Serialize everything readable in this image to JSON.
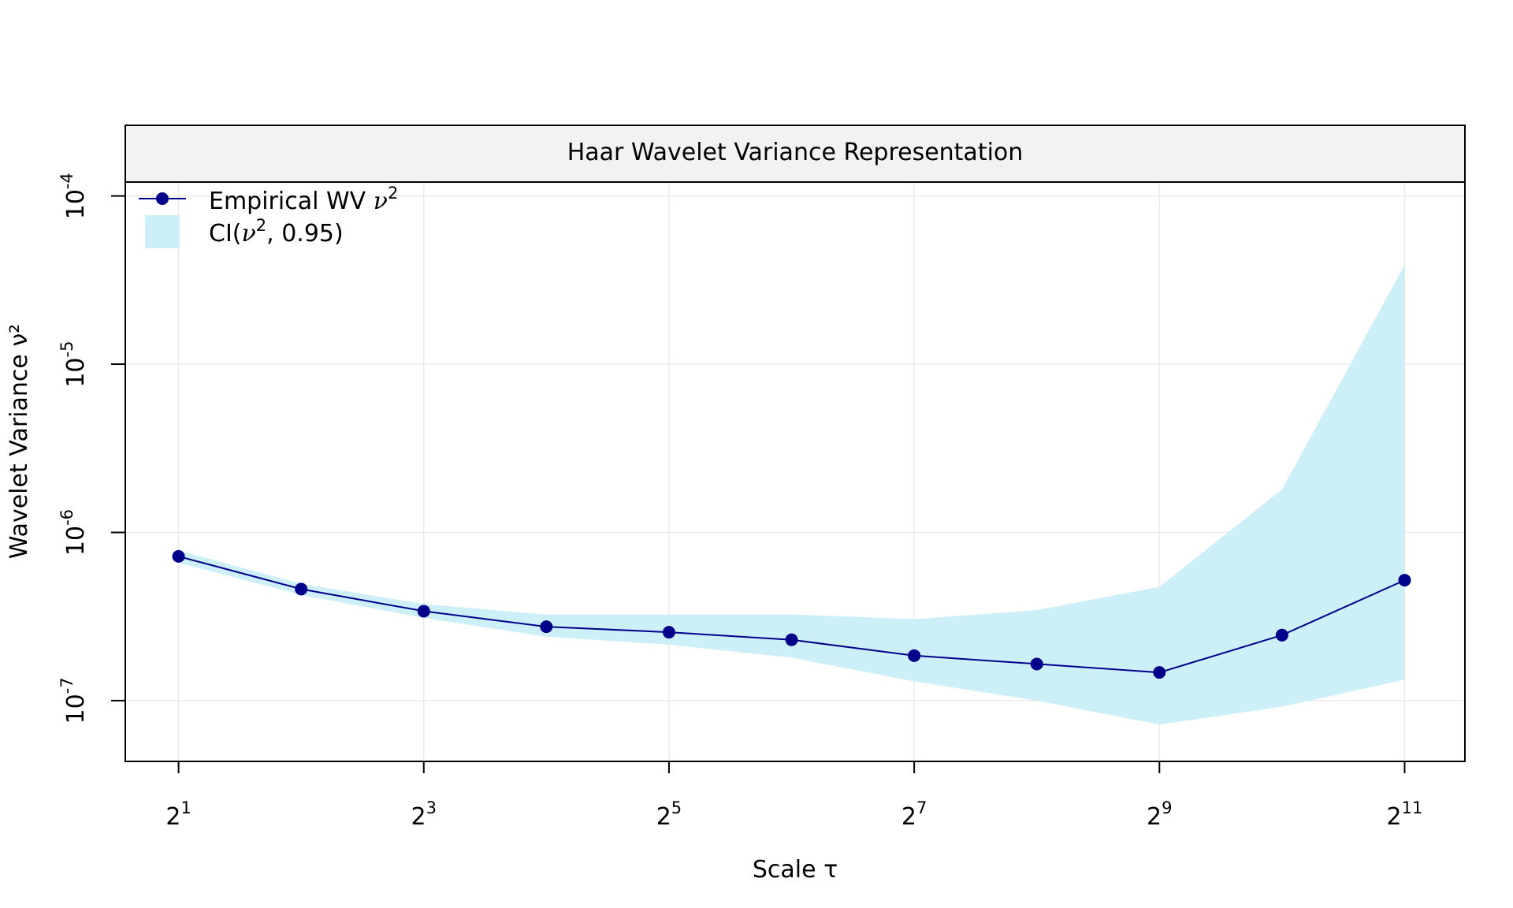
{
  "chart_data": {
    "type": "line",
    "title": "Haar Wavelet Variance Representation",
    "xlabel": "Scale τ",
    "ylabel": "Wavelet Variance ν²",
    "x_scale": "log2",
    "y_scale": "log10",
    "xlim": [
      1.48,
      2880
    ],
    "ylim": [
      4.35e-08,
      0.000121
    ],
    "x": [
      2,
      4,
      8,
      16,
      32,
      64,
      128,
      256,
      512,
      1024,
      2048
    ],
    "x_ticks": [
      {
        "value": 2,
        "base": "2",
        "exp": "1"
      },
      {
        "value": 8,
        "base": "2",
        "exp": "3"
      },
      {
        "value": 32,
        "base": "2",
        "exp": "5"
      },
      {
        "value": 128,
        "base": "2",
        "exp": "7"
      },
      {
        "value": 512,
        "base": "2",
        "exp": "9"
      },
      {
        "value": 2048,
        "base": "2",
        "exp": "11"
      }
    ],
    "y_ticks": [
      {
        "value": 1e-07,
        "base": "10",
        "exp": "-7"
      },
      {
        "value": 1e-06,
        "base": "10",
        "exp": "-6"
      },
      {
        "value": 1e-05,
        "base": "10",
        "exp": "-5"
      },
      {
        "value": 0.0001,
        "base": "10",
        "exp": "-4"
      }
    ],
    "grid": true,
    "legend_position": "top-left",
    "series": [
      {
        "name": "Empirical WV ν²",
        "legend_label": "Empirical WV",
        "legend_symbol": "ν",
        "legend_sup": "2",
        "color": "#00008b",
        "values": [
          7.2e-07,
          4.6e-07,
          3.4e-07,
          2.75e-07,
          2.55e-07,
          2.3e-07,
          1.85e-07,
          1.65e-07,
          1.47e-07,
          2.45e-07,
          5.2e-07
        ]
      }
    ],
    "ci": {
      "name": "CI(ν², 0.95)",
      "legend_prefix": "CI(",
      "legend_symbol": "ν",
      "legend_sup": "2",
      "legend_suffix": ", 0.95)",
      "color": "#cdeff7",
      "lower": [
        6.6e-07,
        4.25e-07,
        3.1e-07,
        2.4e-07,
        2.15e-07,
        1.8e-07,
        1.3e-07,
        1e-07,
        7.2e-08,
        9.2e-08,
        1.33e-07
      ],
      "upper": [
        7.8e-07,
        4.95e-07,
        3.75e-07,
        3.25e-07,
        3.25e-07,
        3.25e-07,
        3.05e-07,
        3.45e-07,
        4.75e-07,
        1.8e-06,
        3.9e-05
      ]
    }
  }
}
